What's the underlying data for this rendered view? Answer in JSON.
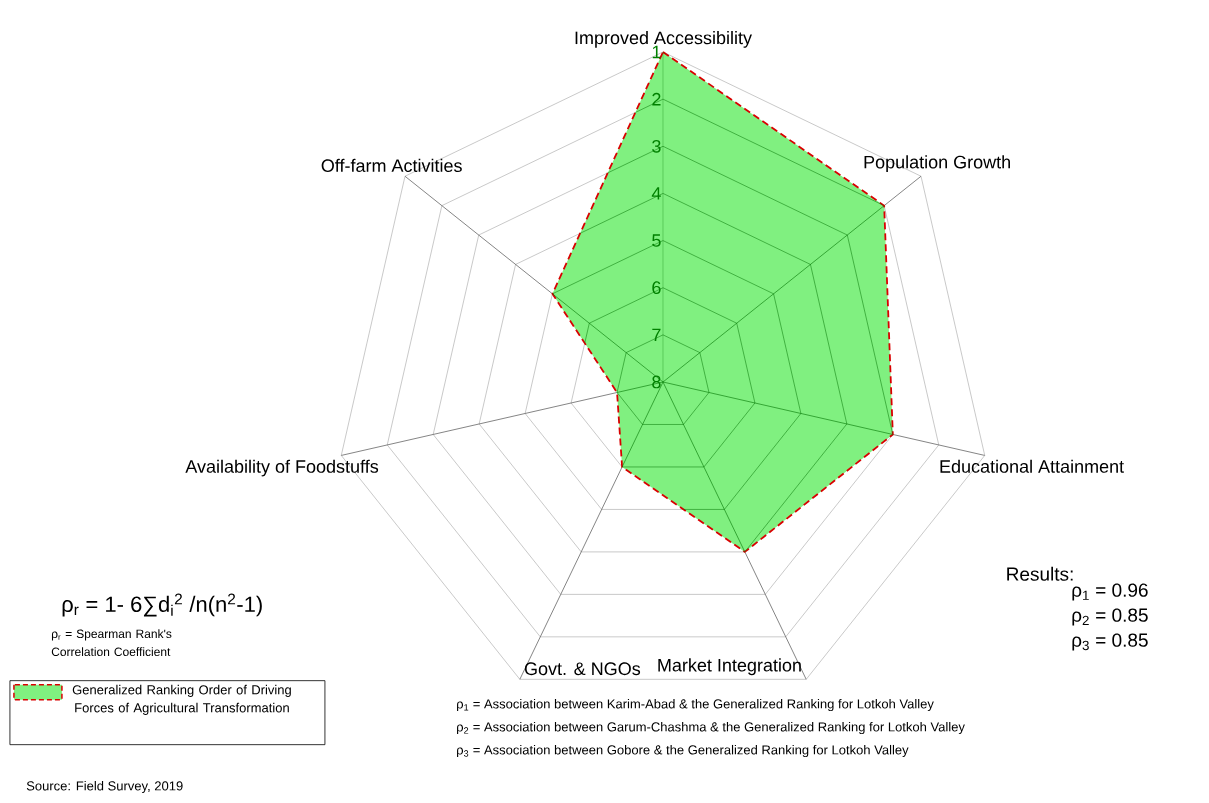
{
  "chart_data": {
    "type": "radar",
    "categories": [
      "Improved Accessibility",
      "Population Growth",
      "Educational Attainment",
      "Market Integration",
      "Govt. & NGOs",
      "Availability of Foodstuffs",
      "Off-farm Activities"
    ],
    "series": [
      {
        "name": "Generalized Ranking Order of Driving Forces of Agricultural Transformation",
        "color": "#80f080",
        "values": [
          1,
          2,
          3,
          4,
          6,
          7,
          5
        ]
      }
    ],
    "ylim": [
      8,
      1
    ],
    "yticks": [
      {
        "value": 1,
        "label": "1"
      },
      {
        "value": 2,
        "label": "2"
      },
      {
        "value": 3,
        "label": "3"
      },
      {
        "value": 4,
        "label": "4"
      },
      {
        "value": 5,
        "label": "5"
      },
      {
        "value": 6,
        "label": "6"
      },
      {
        "value": 7,
        "label": "7"
      },
      {
        "value": 8,
        "label": "8"
      }
    ],
    "grid": true,
    "legend": "bottom left",
    "line_style": "dashed",
    "annotations": [
      "ρ$_{r}$ = 1- 6∑d$_{i}$$^{2}$ /n(n$^{2}$-1)",
      "ρ$_{r}$ = Spearman Rank's Correlation Coefficient",
      "Results:",
      "ρ$_{1}$ = 0.96",
      "ρ$_{2}$ = 0.85",
      "ρ$_{3}$ = 0.85",
      "ρ$_{1}$ = Association between Karim-Abad & the Generalized Ranking for Lotkoh Valley",
      "ρ$_{2}$ = Association between Garum-Chashma & the Generalized Ranking for Lotkoh Valley",
      "ρ$_{3}$ = Association between Gobore & the Generalized Ranking for Lotkoh Valley",
      "Source: Field Survey, 2019"
    ]
  }
}
